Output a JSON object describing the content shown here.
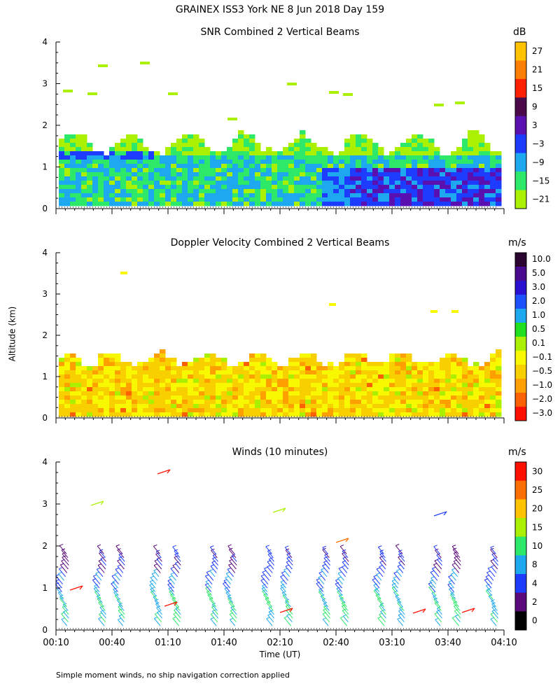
{
  "header": {
    "title": "GRAINEX ISS3 York NE   8 Jun 2018 Day 159"
  },
  "axes": {
    "y_title": "Altitude (km)",
    "x_title": "Time (UT)",
    "x_ticks": [
      "00:10",
      "00:40",
      "01:10",
      "01:40",
      "02:10",
      "02:40",
      "03:10",
      "03:40",
      "04:10"
    ],
    "y_ticks": [
      "0",
      "1",
      "2",
      "3",
      "4"
    ]
  },
  "footnote": "Simple moment winds, no ship navigation correction applied",
  "panels": [
    {
      "title": "SNR Combined 2 Vertical Beams",
      "unit": "dB",
      "colorbar_labels": [
        "27",
        "21",
        "15",
        "9",
        "3",
        "−3",
        "−9",
        "−15",
        "−21"
      ],
      "colorbar_colors": [
        "#ffc300",
        "#ff8000",
        "#ff2000",
        "#4a0a4a",
        "#5a10b0",
        "#1e3cff",
        "#1ea8f0",
        "#2ee86a",
        "#aaf000"
      ]
    },
    {
      "title": "Doppler Velocity Combined 2 Vertical Beams",
      "unit": "m/s",
      "colorbar_labels": [
        "10.0",
        "5.0",
        "3.0",
        "2.0",
        "1.0",
        "0.5",
        "0.1",
        "−0.1",
        "−0.5",
        "−1.0",
        "−2.0",
        "−3.0"
      ],
      "colorbar_colors": [
        "#2a0530",
        "#4a0a90",
        "#2a10d0",
        "#1e50ff",
        "#1ea8f0",
        "#20e020",
        "#aaf000",
        "#f8f800",
        "#f8d000",
        "#ffa000",
        "#ff6000",
        "#ff1000"
      ]
    },
    {
      "title": "Winds (10 minutes)",
      "unit": "m/s",
      "colorbar_labels": [
        "30",
        "25",
        "20",
        "15",
        "10",
        "8",
        "4",
        "2",
        "0"
      ],
      "colorbar_colors": [
        "#ff1000",
        "#ff7000",
        "#ffc300",
        "#aaf000",
        "#2ee86a",
        "#1ea8f0",
        "#1e3cff",
        "#5a0a7a",
        "#000000"
      ]
    }
  ],
  "chart_data": [
    {
      "type": "heatmap",
      "title": "SNR Combined 2 Vertical Beams",
      "unit": "dB",
      "xlabel": "Time (UT)",
      "ylabel": "Altitude (km)",
      "xlim": [
        "00:10",
        "04:10"
      ],
      "ylim": [
        0,
        4
      ],
      "summary_layers": [
        {
          "time_range": [
            "00:10",
            "04:10"
          ],
          "alt_km": [
            1.4,
            1.8
          ],
          "snr_db": -21
        },
        {
          "time_range": [
            "00:10",
            "04:10"
          ],
          "alt_km": [
            1.1,
            1.4
          ],
          "snr_db": -15
        },
        {
          "time_range": [
            "00:10",
            "02:40"
          ],
          "alt_km": [
            0.1,
            1.1
          ],
          "snr_db": -12
        },
        {
          "time_range": [
            "00:15",
            "01:00"
          ],
          "alt_km": [
            1.2,
            1.45
          ],
          "snr_db": -3
        },
        {
          "time_range": [
            "02:45",
            "04:10"
          ],
          "alt_km": [
            0.1,
            1.0
          ],
          "snr_db": 3
        }
      ]
    },
    {
      "type": "heatmap",
      "title": "Doppler Velocity Combined 2 Vertical Beams",
      "unit": "m/s",
      "xlabel": "Time (UT)",
      "ylabel": "Altitude (km)",
      "xlim": [
        "00:10",
        "04:10"
      ],
      "ylim": [
        0,
        4
      ],
      "summary_layers": [
        {
          "time_range": [
            "00:10",
            "04:10"
          ],
          "alt_km": [
            0.1,
            1.6
          ],
          "velocity_ms": -0.5
        }
      ]
    },
    {
      "type": "scatter",
      "title": "Winds (10 minutes)",
      "unit": "m/s",
      "xlabel": "Time (UT)",
      "ylabel": "Altitude (km)",
      "xlim": [
        "00:10",
        "04:10"
      ],
      "ylim": [
        0,
        4
      ],
      "profile_times": [
        "00:15",
        "00:35",
        "00:45",
        "01:05",
        "01:15",
        "01:35",
        "01:45",
        "02:05",
        "02:15",
        "02:35",
        "02:45",
        "03:05",
        "03:15",
        "03:35",
        "03:45",
        "04:05"
      ],
      "typical_speed_ms": {
        "0-1km": 10,
        "1-2km": 6
      }
    }
  ]
}
